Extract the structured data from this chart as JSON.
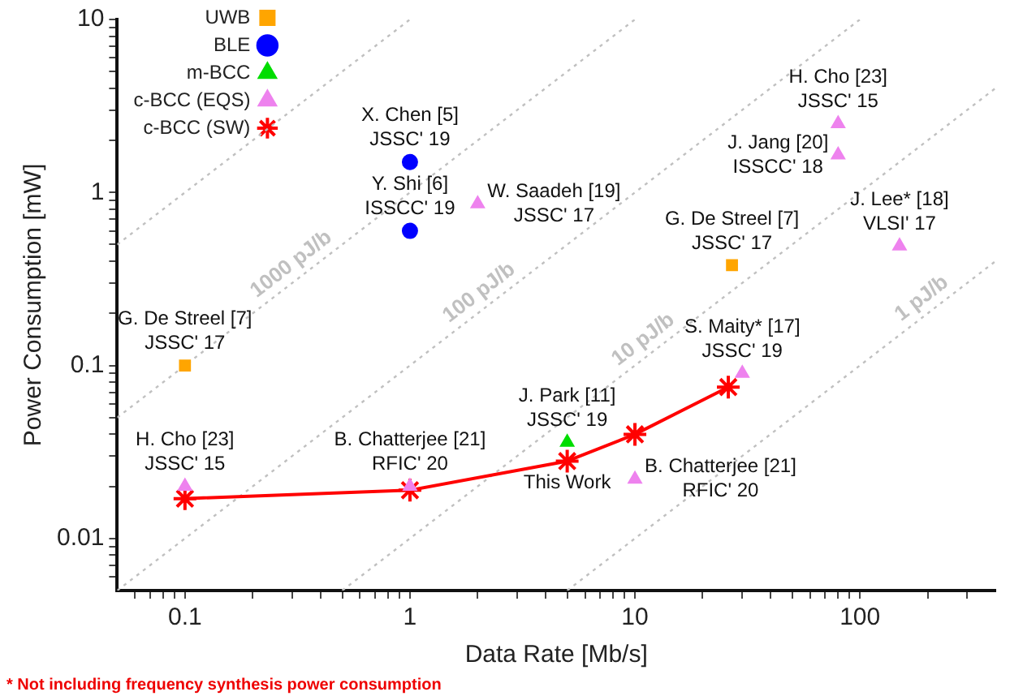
{
  "chart_data": {
    "type": "scatter",
    "xlabel": "Data Rate [Mb/s]",
    "ylabel": "Power Consumption [mW]",
    "log": "xy",
    "grid": false,
    "legend": "top left",
    "xlim": [
      0.05,
      400
    ],
    "ylim": [
      0.005,
      10
    ],
    "xticks": [
      {
        "value": 0.06,
        "label": null
      },
      {
        "value": 0.07,
        "label": null
      },
      {
        "value": 0.08,
        "label": null
      },
      {
        "value": 0.09,
        "label": null
      },
      0.1,
      {
        "value": 0.2,
        "label": null
      },
      {
        "value": 0.3,
        "label": null
      },
      {
        "value": 0.4,
        "label": null
      },
      {
        "value": 0.5,
        "label": null
      },
      {
        "value": 0.6,
        "label": null
      },
      {
        "value": 0.7,
        "label": null
      },
      {
        "value": 0.8,
        "label": null
      },
      {
        "value": 0.9,
        "label": null
      },
      1,
      {
        "value": 2,
        "label": null
      },
      {
        "value": 3,
        "label": null
      },
      {
        "value": 4,
        "label": null
      },
      {
        "value": 5,
        "label": null
      },
      {
        "value": 6,
        "label": null
      },
      {
        "value": 7,
        "label": null
      },
      {
        "value": 8,
        "label": null
      },
      {
        "value": 9,
        "label": null
      },
      10,
      {
        "value": 20,
        "label": null
      },
      {
        "value": 30,
        "label": null
      },
      {
        "value": 40,
        "label": null
      },
      {
        "value": 50,
        "label": null
      },
      {
        "value": 60,
        "label": null
      },
      {
        "value": 70,
        "label": null
      },
      {
        "value": 80,
        "label": null
      },
      {
        "value": 90,
        "label": null
      },
      100,
      {
        "value": 200,
        "label": null
      },
      {
        "value": 300,
        "label": null
      }
    ],
    "yticks": [
      {
        "value": 0.006,
        "label": null
      },
      {
        "value": 0.007,
        "label": null
      },
      {
        "value": 0.008,
        "label": null
      },
      {
        "value": 0.009,
        "label": null
      },
      0.01,
      {
        "value": 0.02,
        "label": null
      },
      {
        "value": 0.03,
        "label": null
      },
      {
        "value": 0.04,
        "label": null
      },
      {
        "value": 0.05,
        "label": null
      },
      {
        "value": 0.06,
        "label": null
      },
      {
        "value": 0.07,
        "label": null
      },
      {
        "value": 0.08,
        "label": null
      },
      {
        "value": 0.09,
        "label": null
      },
      0.1,
      {
        "value": 0.2,
        "label": null
      },
      {
        "value": 0.3,
        "label": null
      },
      {
        "value": 0.4,
        "label": null
      },
      {
        "value": 0.5,
        "label": null
      },
      {
        "value": 0.6,
        "label": null
      },
      {
        "value": 0.7,
        "label": null
      },
      {
        "value": 0.8,
        "label": null
      },
      {
        "value": 0.9,
        "label": null
      },
      1,
      {
        "value": 2,
        "label": null
      },
      {
        "value": 3,
        "label": null
      },
      {
        "value": 4,
        "label": null
      },
      {
        "value": 5,
        "label": null
      },
      {
        "value": 6,
        "label": null
      },
      {
        "value": 7,
        "label": null
      },
      {
        "value": 8,
        "label": null
      },
      {
        "value": 9,
        "label": null
      },
      10
    ],
    "series": [
      {
        "name": "UWB",
        "type": "scatter",
        "marker": "square",
        "color": "#ffa500",
        "x": [
          0.1,
          27
        ],
        "values": [
          0.1,
          0.38
        ]
      },
      {
        "name": "BLE",
        "type": "scatter",
        "marker": "circle",
        "color": "#0000ff",
        "x": [
          1,
          1
        ],
        "values": [
          1.5,
          0.6
        ]
      },
      {
        "name": "m-BCC",
        "type": "scatter",
        "marker": "triangle",
        "color": "#00dd00",
        "x": [
          5
        ],
        "values": [
          0.036
        ]
      },
      {
        "name": "c-BCC (EQS)",
        "type": "scatter",
        "marker": "triangle",
        "color": "#ee82ee",
        "x": [
          0.1,
          1,
          2,
          80,
          80,
          150,
          30,
          10
        ],
        "values": [
          0.02,
          0.02,
          0.86,
          2.5,
          1.65,
          0.49,
          0.09,
          0.022
        ]
      },
      {
        "name": "c-BCC (SW)",
        "type": "line",
        "marker": "cross",
        "line_style": "solid",
        "color": "#ff0000",
        "x": [
          0.1,
          1,
          5,
          10,
          26
        ],
        "values": [
          0.017,
          0.019,
          0.028,
          0.04,
          0.075
        ]
      },
      {
        "type": "line",
        "marker": "none",
        "line_style": "dotted",
        "color": "#c0c0c0",
        "x": [
          0.05,
          1
        ],
        "values": [
          0.5,
          10
        ]
      },
      {
        "name": "1000 pJ/b",
        "type": "line",
        "marker": "none",
        "line_style": "dotted",
        "color": "#c0c0c0",
        "x": [
          0.05,
          10
        ],
        "values": [
          0.05,
          10
        ]
      },
      {
        "name": "100 pJ/b",
        "type": "line",
        "marker": "none",
        "line_style": "dotted",
        "color": "#c0c0c0",
        "x": [
          0.05,
          100
        ],
        "values": [
          0.005,
          10
        ]
      },
      {
        "name": "10 pJ/b",
        "type": "line",
        "marker": "none",
        "line_style": "dotted",
        "color": "#c0c0c0",
        "x": [
          0.5,
          400
        ],
        "values": [
          0.005,
          4
        ]
      },
      {
        "name": "1 pJ/b",
        "type": "line",
        "marker": "none",
        "line_style": "dotted",
        "color": "#c0c0c0",
        "x": [
          5,
          400
        ],
        "values": [
          0.005,
          0.4
        ]
      }
    ],
    "annotations": [
      {
        "text": "X. Chen [5]\nJSSC' 19",
        "x": 1,
        "y": 1.5
      },
      {
        "text": "Y. Shi [6]\nISSCC' 19",
        "x": 1,
        "y": 0.6
      },
      {
        "text": "W. Saadeh [19]\nJSSC' 17",
        "x": 2,
        "y": 0.86
      },
      {
        "text": "G. De Streel [7]\nJSSC' 17",
        "x": 27,
        "y": 0.38
      },
      {
        "text": "H. Cho [23]\nJSSC' 15",
        "x": 80,
        "y": 2.5
      },
      {
        "text": "J. Jang [20]\nISSCC' 18",
        "x": 80,
        "y": 1.65
      },
      {
        "text": "J. Lee* [18]\nVLSI' 17",
        "x": 150,
        "y": 0.49
      },
      {
        "text": "G. De Streel [7]\nJSSC' 17",
        "x": 0.1,
        "y": 0.1
      },
      {
        "text": "H. Cho [23]\nJSSC' 15",
        "x": 0.1,
        "y": 0.02
      },
      {
        "text": "B. Chatterjee [21]\nRFIC' 20",
        "x": 1,
        "y": 0.02
      },
      {
        "text": "J. Park [11]\nJSSC' 19",
        "x": 5,
        "y": 0.036
      },
      {
        "text": "S. Maity* [17]\nJSSC' 19",
        "x": 30,
        "y": 0.09
      },
      {
        "text": "B. Chatterjee [21]\nRFIC' 20",
        "x": 10,
        "y": 0.022
      },
      {
        "text": "This Work",
        "x": 5,
        "y": 0.028
      },
      "* Not including frequency synthesis power consumption"
    ]
  }
}
